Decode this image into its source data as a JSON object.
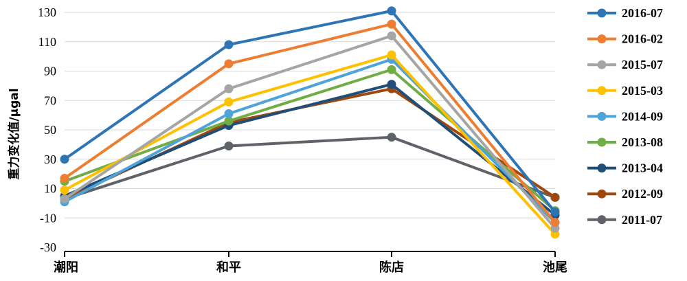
{
  "chart_data": {
    "type": "line",
    "categories": [
      "潮阳",
      "和平",
      "陈店",
      "池尾"
    ],
    "ylabel": "重力变化值/μgal",
    "ylim": [
      -30,
      130
    ],
    "yticks": [
      -30,
      -10,
      10,
      30,
      50,
      70,
      90,
      110,
      130
    ],
    "grid": true,
    "legend_position": "right",
    "series": [
      {
        "name": "2016-07",
        "color": "#2E75B6",
        "values": [
          30,
          108,
          131,
          -6
        ]
      },
      {
        "name": "2016-02",
        "color": "#ED7D31",
        "values": [
          17,
          95,
          122,
          -13
        ]
      },
      {
        "name": "2015-07",
        "color": "#A5A5A5",
        "values": [
          3,
          78,
          114,
          -17
        ]
      },
      {
        "name": "2015-03",
        "color": "#FFC000",
        "values": [
          9,
          69,
          101,
          -21
        ]
      },
      {
        "name": "2014-09",
        "color": "#4EA3D8",
        "values": [
          1,
          61,
          98,
          -13
        ]
      },
      {
        "name": "2013-08",
        "color": "#70AD47",
        "values": [
          15,
          56,
          91,
          -5
        ]
      },
      {
        "name": "2013-04",
        "color": "#1F4E79",
        "values": [
          5,
          53,
          81,
          -8
        ]
      },
      {
        "name": "2012-09",
        "color": "#9E480E",
        "values": [
          3,
          55,
          78,
          4
        ]
      },
      {
        "name": "2011-07",
        "color": "#5F6369",
        "values": [
          3,
          39,
          45,
          4
        ]
      }
    ]
  }
}
